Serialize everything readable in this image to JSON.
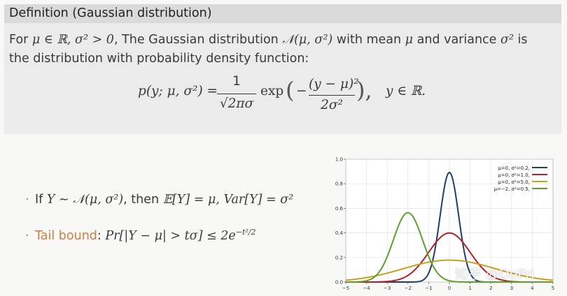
{
  "definition": {
    "title": "Definition (Gaussian distribution)",
    "line1_prefix": "For ",
    "line1_cond": "μ ∈ ℝ, σ² > 0",
    "line1_mid": ", The Gaussian distribution ",
    "line1_dist": "𝒩(μ, σ²)",
    "line1_mean": " with mean ",
    "line1_mu": "μ",
    "line1_var": " and variance ",
    "line1_sigma": "σ²",
    "line1_is": " is",
    "line2": "the distribution with probability density function:"
  },
  "formula": {
    "lhs": "p(y; μ, σ²) =",
    "num_one": "1",
    "den_root": "√2πσ",
    "exp": "exp",
    "open": "(",
    "minus": "−",
    "num": "(y − μ)²",
    "den": "2σ²",
    "close": "),",
    "domain": "y ∈ ℝ."
  },
  "bullets": {
    "b1_prefix": "If ",
    "b1_expr": "Y ∼ 𝒩(μ, σ²)",
    "b1_then": ", then ",
    "b1_result": "𝔼[Y] = μ, Var[Y] = σ²",
    "b2_label": "Tail bound",
    "b2_colon": ": ",
    "b2_expr": "Pr[|Y − μ| > tσ] ≤ 2e",
    "b2_exp": "−t²/2"
  },
  "watermark": "知乎 @DePri",
  "colors": {
    "accent": "#d07c3e",
    "navy": "#1f3f6b",
    "red": "#b22222",
    "gold": "#c8a020",
    "green": "#5aa02c"
  },
  "chart_data": {
    "type": "line",
    "xlim": [
      -5,
      5
    ],
    "ylim": [
      0,
      1.0
    ],
    "xticks": [
      -5,
      -4,
      -3,
      -2,
      -1,
      0,
      1,
      2,
      3,
      4,
      5
    ],
    "yticks": [
      0.0,
      0.2,
      0.4,
      0.6,
      0.8,
      1.0
    ],
    "yticklabels": [
      "0.0",
      "0.2",
      "0.4",
      "0.6",
      "0.8",
      "1.0"
    ],
    "xticklabels": [
      "−5",
      "−4",
      "−3",
      "−2",
      "−1",
      "0",
      "1",
      "2",
      "3",
      "4",
      "5"
    ],
    "grid": true,
    "legend_position": "top-right",
    "series": [
      {
        "name": "μ=0,   σ²=0.2,",
        "mu": 0,
        "var": 0.2,
        "color": "#1f3f6b"
      },
      {
        "name": "μ=0,   σ²=1.0,",
        "mu": 0,
        "var": 1.0,
        "color": "#b22222"
      },
      {
        "name": "μ=0,   σ²=5.0,",
        "mu": 0,
        "var": 5.0,
        "color": "#c8a020"
      },
      {
        "name": "μ=−2, σ²=0.5,",
        "mu": -2,
        "var": 0.5,
        "color": "#5aa02c"
      }
    ]
  }
}
